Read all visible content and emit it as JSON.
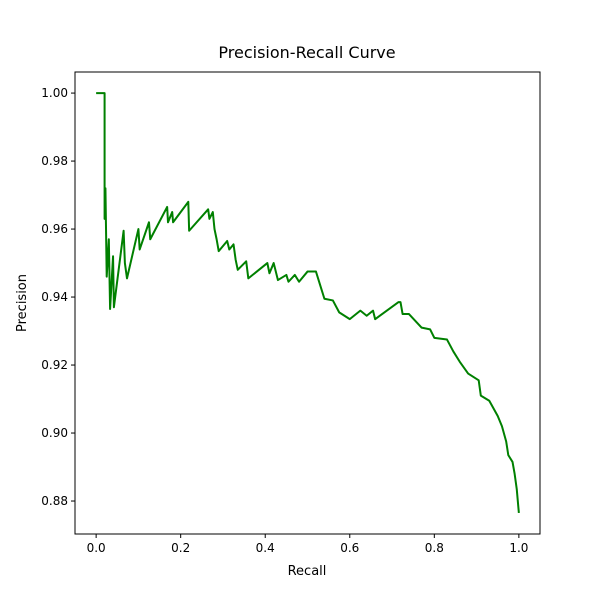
{
  "chart_data": {
    "type": "line",
    "title": "Precision-Recall Curve",
    "xlabel": "Recall",
    "ylabel": "Precision",
    "xlim": [
      -0.05,
      1.05
    ],
    "ylim": [
      0.8703,
      1.0062
    ],
    "xticks": [
      {
        "value": 0,
        "label": "0.0"
      },
      {
        "value": 0.2,
        "label": "0.2"
      },
      {
        "value": 0.4,
        "label": "0.4"
      },
      {
        "value": 0.6,
        "label": "0.6"
      },
      {
        "value": 0.8,
        "label": "0.8"
      },
      {
        "value": 1,
        "label": "1.0"
      }
    ],
    "yticks": [
      {
        "value": 0.88,
        "label": "0.88"
      },
      {
        "value": 0.9,
        "label": "0.90"
      },
      {
        "value": 0.92,
        "label": "0.92"
      },
      {
        "value": 0.94,
        "label": "0.94"
      },
      {
        "value": 0.96,
        "label": "0.96"
      },
      {
        "value": 0.98,
        "label": "0.98"
      },
      {
        "value": 1,
        "label": "1.00"
      }
    ],
    "series": [
      {
        "color": "#008000",
        "x": [
          0,
          0.02,
          0.02,
          0.022,
          0.025,
          0.03,
          0.033,
          0.04,
          0.042,
          0.065,
          0.068,
          0.073,
          0.1,
          0.103,
          0.125,
          0.128,
          0.168,
          0.17,
          0.18,
          0.182,
          0.218,
          0.22,
          0.265,
          0.268,
          0.276,
          0.28,
          0.285,
          0.29,
          0.31,
          0.315,
          0.325,
          0.33,
          0.335,
          0.355,
          0.36,
          0.405,
          0.41,
          0.42,
          0.43,
          0.45,
          0.455,
          0.47,
          0.48,
          0.5,
          0.52,
          0.53,
          0.54,
          0.56,
          0.575,
          0.6,
          0.625,
          0.64,
          0.655,
          0.66,
          0.715,
          0.72,
          0.725,
          0.74,
          0.77,
          0.79,
          0.8,
          0.83,
          0.845,
          0.86,
          0.88,
          0.905,
          0.91,
          0.93,
          0.95,
          0.96,
          0.97,
          0.975,
          0.985,
          0.99,
          0.995,
          1.0
        ],
        "values": [
          1.0,
          1.0,
          0.963,
          0.972,
          0.946,
          0.957,
          0.9365,
          0.952,
          0.937,
          0.9595,
          0.95,
          0.9455,
          0.96,
          0.954,
          0.962,
          0.957,
          0.9665,
          0.962,
          0.965,
          0.962,
          0.968,
          0.9595,
          0.9658,
          0.963,
          0.965,
          0.96,
          0.957,
          0.9535,
          0.9565,
          0.954,
          0.9555,
          0.951,
          0.948,
          0.9505,
          0.9455,
          0.95,
          0.947,
          0.95,
          0.945,
          0.9465,
          0.9445,
          0.9465,
          0.9445,
          0.9475,
          0.9475,
          0.9435,
          0.9395,
          0.939,
          0.9355,
          0.9335,
          0.936,
          0.9345,
          0.936,
          0.9335,
          0.9385,
          0.9385,
          0.935,
          0.935,
          0.931,
          0.9305,
          0.928,
          0.9275,
          0.924,
          0.921,
          0.9175,
          0.9155,
          0.911,
          0.9095,
          0.905,
          0.902,
          0.8975,
          0.8935,
          0.8915,
          0.888,
          0.8835,
          0.8765
        ]
      }
    ]
  }
}
